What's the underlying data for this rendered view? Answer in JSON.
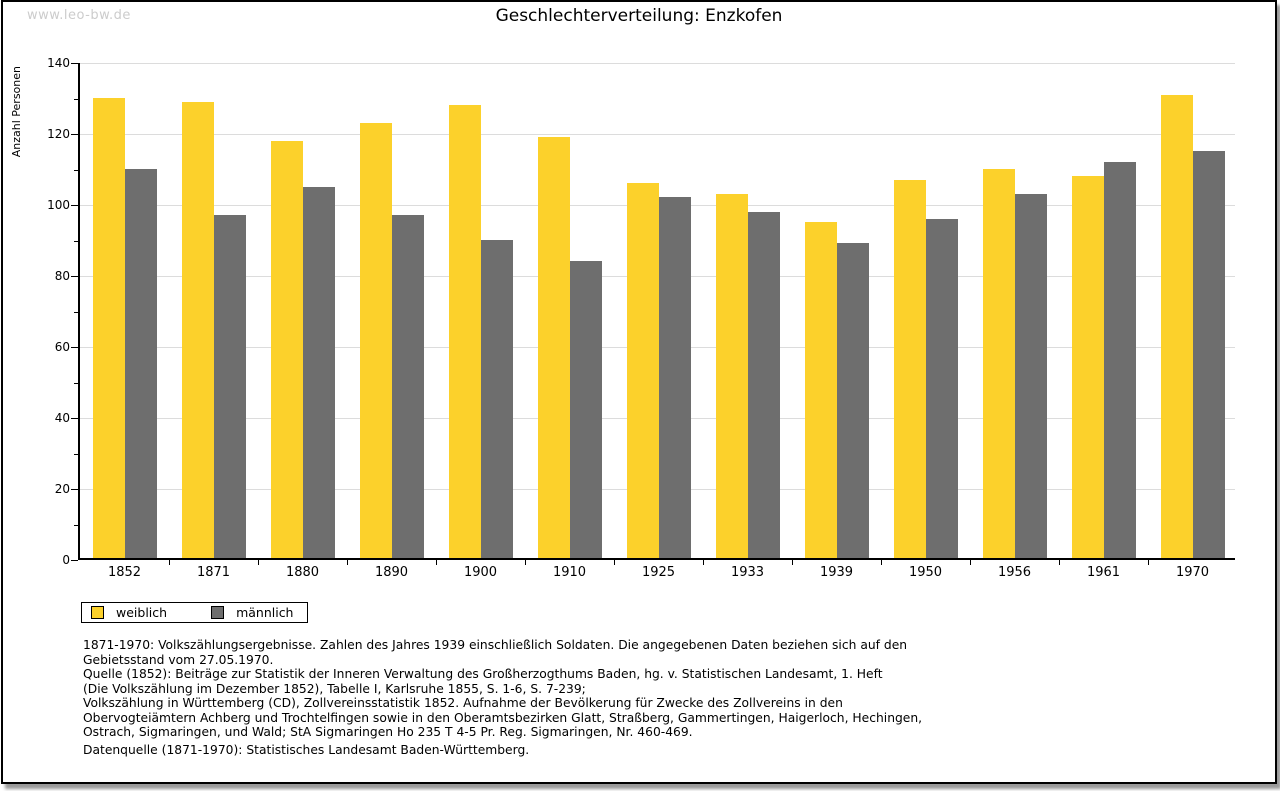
{
  "watermark": "www.leo-bw.de",
  "chart_data": {
    "type": "bar",
    "title": "Geschlechterverteilung: Enzkofen",
    "ylabel": "Anzahl Personen",
    "xlabel": "",
    "ylim": [
      0,
      140
    ],
    "yticks": [
      0,
      20,
      40,
      60,
      80,
      100,
      120,
      140
    ],
    "minor_yticks": [
      10,
      30,
      50,
      70,
      90,
      110,
      130
    ],
    "grid": true,
    "legend_position": "bottom-left",
    "categories": [
      "1852",
      "1871",
      "1880",
      "1890",
      "1900",
      "1910",
      "1925",
      "1933",
      "1939",
      "1950",
      "1956",
      "1961",
      "1970"
    ],
    "series": [
      {
        "name": "weiblich",
        "color": "#FCD12B",
        "values": [
          130,
          129,
          118,
          123,
          128,
          119,
          106,
          103,
          95,
          107,
          110,
          108,
          131
        ]
      },
      {
        "name": "männlich",
        "color": "#6E6E6E",
        "values": [
          110,
          97,
          105,
          97,
          90,
          84,
          102,
          98,
          89,
          96,
          103,
          112,
          115
        ]
      }
    ]
  },
  "footnotes": {
    "lines": [
      "1871-1970: Volkszählungsergebnisse. Zahlen des Jahres 1939 einschließlich Soldaten. Die angegebenen Daten beziehen sich auf den",
      "Gebietsstand vom 27.05.1970.",
      "Quelle (1852): Beiträge zur Statistik der Inneren Verwaltung des Großherzogthums Baden, hg. v. Statistischen Landesamt, 1. Heft",
      "(Die Volkszählung im Dezember 1852), Tabelle I, Karlsruhe 1855, S. 1-6, S. 7-239;",
      "Volkszählung in Württemberg (CD), Zollvereinsstatistik 1852. Aufnahme der Bevölkerung für Zwecke des Zollvereins in den",
      "Obervogteiämtern Achberg und Trochtelfingen sowie in den Oberamtsbezirken Glatt, Straßberg, Gammertingen, Haigerloch, Hechingen,",
      "Ostrach, Sigmaringen, und Wald; StA Sigmaringen Ho 235 T 4-5 Pr. Reg. Sigmaringen, Nr. 460-469."
    ],
    "datasource": "Datenquelle (1871-1970): Statistisches Landesamt Baden-Württemberg."
  },
  "colors": {
    "female_bar": "#FCD12B",
    "male_bar": "#6E6E6E",
    "gridline": "#DCDCDC",
    "axis": "#000000",
    "watermark": "#CCCCCC"
  }
}
